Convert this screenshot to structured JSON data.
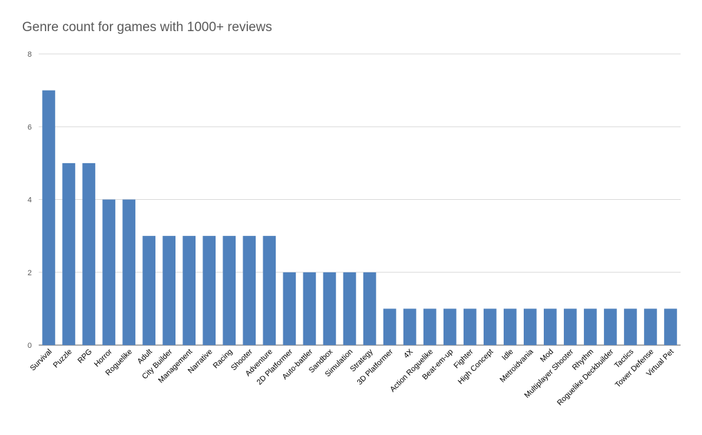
{
  "chart_data": {
    "type": "bar",
    "title": "Genre count for games with 1000+ reviews",
    "xlabel": "",
    "ylabel": "",
    "ylim": [
      0,
      8
    ],
    "yticks": [
      0,
      2,
      4,
      6,
      8
    ],
    "grid": true,
    "legend": "none",
    "bar_color": "#4F81BD",
    "categories": [
      "Survival",
      "Puzzle",
      "RPG",
      "Horror",
      "Roguelike",
      "Adult",
      "City Builder",
      "Management",
      "Narrative",
      "Racing",
      "Shooter",
      "Adventure",
      "2D Platformer",
      "Auto-battler",
      "Sandbox",
      "Simulation",
      "Strategy",
      "3D Platformer",
      "4X",
      "Action Roguelike",
      "Beat-em-up",
      "Fighter",
      "High Concept",
      "Idle",
      "Metroidvania",
      "Mod",
      "Multiplayer Shooter",
      "Rhythm",
      "Roguelike Deckbuilder",
      "Tactics",
      "Tower Defense",
      "Virtual Pet"
    ],
    "values": [
      7,
      5,
      5,
      4,
      4,
      3,
      3,
      3,
      3,
      3,
      3,
      3,
      2,
      2,
      2,
      2,
      2,
      1,
      1,
      1,
      1,
      1,
      1,
      1,
      1,
      1,
      1,
      1,
      1,
      1,
      1,
      1
    ]
  }
}
